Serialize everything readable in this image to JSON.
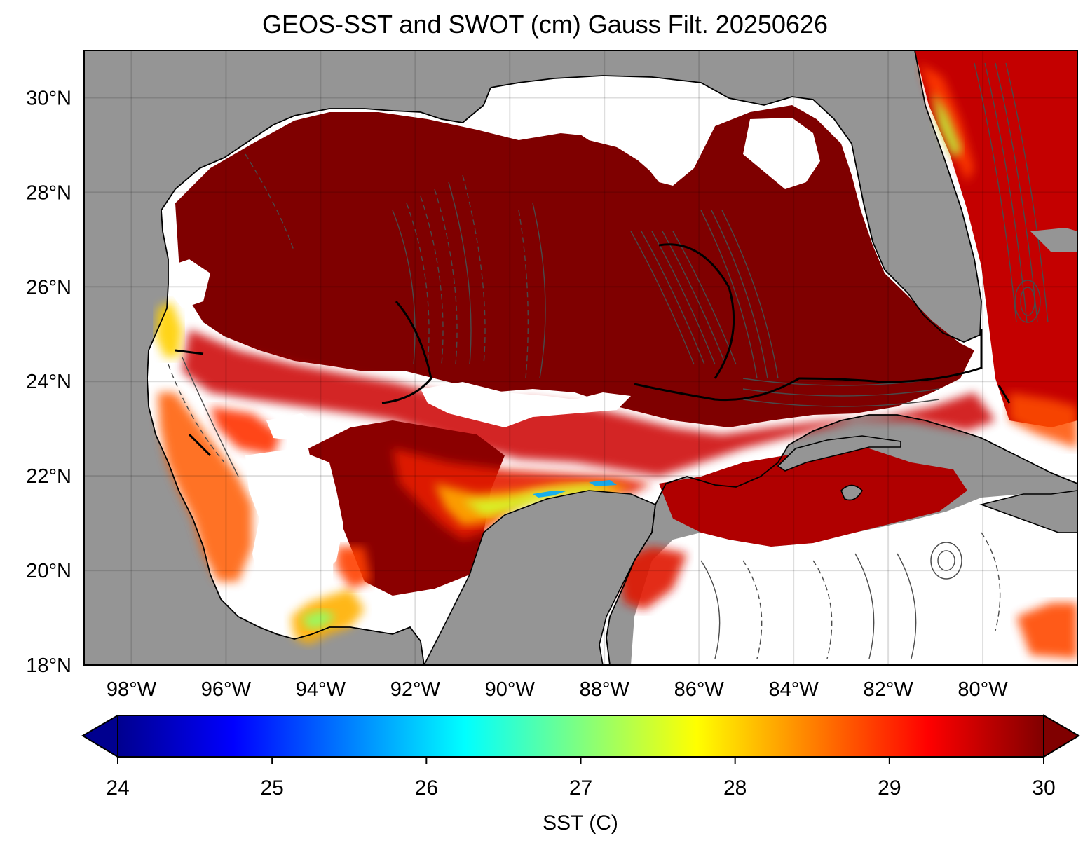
{
  "title": "GEOS-SST  and SWOT (cm) Gauss Filt. 20250626",
  "map": {
    "lon_range": [
      -99,
      -78
    ],
    "lat_range": [
      18,
      31
    ],
    "lat_ticks": [
      {
        "value": 30,
        "label": "30°N"
      },
      {
        "value": 28,
        "label": "28°N"
      },
      {
        "value": 26,
        "label": "26°N"
      },
      {
        "value": 24,
        "label": "24°N"
      },
      {
        "value": 22,
        "label": "22°N"
      },
      {
        "value": 20,
        "label": "20°N"
      },
      {
        "value": 18,
        "label": "18°N"
      }
    ],
    "lon_ticks": [
      {
        "value": -98,
        "label": "98°W"
      },
      {
        "value": -96,
        "label": "96°W"
      },
      {
        "value": -94,
        "label": "94°W"
      },
      {
        "value": -92,
        "label": "92°W"
      },
      {
        "value": -90,
        "label": "90°W"
      },
      {
        "value": -88,
        "label": "88°W"
      },
      {
        "value": -86,
        "label": "86°W"
      },
      {
        "value": -84,
        "label": "84°W"
      },
      {
        "value": -82,
        "label": "82°W"
      },
      {
        "value": -80,
        "label": "80°W"
      }
    ],
    "land_color": "#959595",
    "grid": true
  },
  "colorbar": {
    "label": "SST (C)",
    "vmin": 24,
    "vmax": 30,
    "colormap": "jet",
    "extend": "both",
    "ticks": [
      {
        "value": 24,
        "label": "24"
      },
      {
        "value": 25,
        "label": "25"
      },
      {
        "value": 26,
        "label": "26"
      },
      {
        "value": 27,
        "label": "27"
      },
      {
        "value": 28,
        "label": "28"
      },
      {
        "value": 29,
        "label": "29"
      },
      {
        "value": 30,
        "label": "30"
      }
    ]
  }
}
